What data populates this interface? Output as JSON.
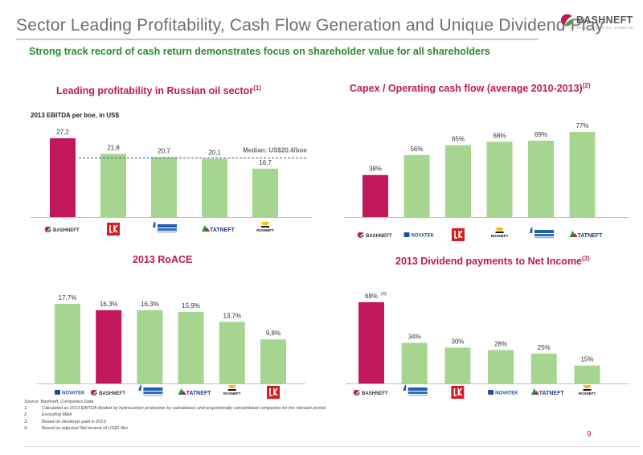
{
  "header": {
    "title": "Sector Leading Profitability, Cash Flow Generation and Unique Dividend Play",
    "subtitle": "Strong track record of cash return demonstrates focus on shareholder value for all shareholders",
    "logo_text": "BASHNEFT",
    "logo_sub": "JOINT STOCK OIL COMPANY"
  },
  "colors": {
    "accent": "#c0185a",
    "bar": "#a6d58f",
    "logo_accent": "#c0185a",
    "logo_green": "#4aa34a"
  },
  "chart_data": [
    {
      "type": "bar",
      "id": "ebitda",
      "title": "Leading profitability in Russian oil sector",
      "title_note": "(1)",
      "ylabel": "2013 EBITDA per boe, in US$",
      "categories": [
        "BASHNEFT",
        "LUKOIL",
        "GAZPROM NEFT",
        "TATNEFT",
        "ROSNEFT"
      ],
      "values": [
        27.2,
        21.8,
        20.7,
        20.1,
        16.7
      ],
      "value_labels": [
        "27,2",
        "21,8",
        "20,7",
        "20,1",
        "16,7"
      ],
      "highlight": 0,
      "ylim": [
        0,
        30
      ],
      "reference_line": {
        "value": 20.4,
        "label": "Median: US$20.4/boe"
      }
    },
    {
      "type": "bar",
      "id": "capex",
      "title": "Capex / Operating cash flow (average 2010-2013)",
      "title_note": "(2)",
      "categories": [
        "BASHNEFT",
        "NOVATEK",
        "LUKOIL",
        "ROSNEFT",
        "GAZPROM NEFT",
        "TATNEFT"
      ],
      "values": [
        38,
        56,
        65,
        68,
        69,
        77
      ],
      "value_labels": [
        "38%",
        "56%",
        "65%",
        "68%",
        "69%",
        "77%"
      ],
      "highlight": 0,
      "ylim": [
        0,
        85
      ]
    },
    {
      "type": "bar",
      "id": "roace",
      "title": "2013 RoACE",
      "title_note": "",
      "categories": [
        "NOVATEK",
        "BASHNEFT",
        "GAZPROM NEFT",
        "TATNEFT",
        "ROSNEFT",
        "LUKOIL"
      ],
      "values": [
        17.7,
        16.3,
        16.3,
        15.9,
        13.7,
        9.8
      ],
      "value_labels": [
        "17,7%",
        "16,3%",
        "16,3%",
        "15,9%",
        "13,7%",
        "9,8%"
      ],
      "highlight": 1,
      "ylim": [
        0,
        20
      ]
    },
    {
      "type": "bar",
      "id": "dividend",
      "title": "2013 Dividend payments to Net Income",
      "title_note": "(3)",
      "categories": [
        "BASHNEFT",
        "GAZPROM NEFT",
        "LUKOIL",
        "NOVATEK",
        "TATNEFT",
        "ROSNEFT"
      ],
      "values": [
        68,
        34,
        30,
        28,
        25,
        15
      ],
      "value_labels": [
        "68%",
        "34%",
        "30%",
        "28%",
        "25%",
        "15%"
      ],
      "highlight": 0,
      "first_label_note": "(4)",
      "ylim": [
        0,
        75
      ]
    }
  ],
  "footer": {
    "source": "Source: Bashneft, Companies Data",
    "notes": [
      {
        "num": "1.",
        "text": "Calculated as 2013 EBITDA divided by hydrocarbon production by subsidiaries and proportionally consolidated companies for the relevant period."
      },
      {
        "num": "2.",
        "text": "Excluding M&A"
      },
      {
        "num": "3.",
        "text": "Based on dividends paid in 2013"
      },
      {
        "num": "4.",
        "text": "Based on adjusted Net income of US$1.9bn"
      }
    ]
  },
  "page_number": "9"
}
